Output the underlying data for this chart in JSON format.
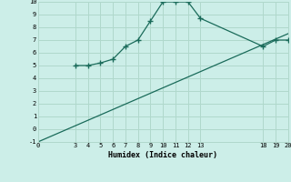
{
  "xlabel": "Humidex (Indice chaleur)",
  "ylabel": "",
  "bg_color": "#cceee8",
  "grid_color": "#b0d8cc",
  "line_color": "#1a6b5a",
  "xlim": [
    0,
    20
  ],
  "ylim": [
    -1,
    10
  ],
  "xticks": [
    0,
    3,
    4,
    5,
    6,
    7,
    8,
    9,
    10,
    11,
    12,
    13,
    18,
    19,
    20
  ],
  "yticks": [
    -1,
    0,
    1,
    2,
    3,
    4,
    5,
    6,
    7,
    8,
    9,
    10
  ],
  "line1_x": [
    0,
    20
  ],
  "line1_y": [
    -1,
    7.5
  ],
  "line2_x": [
    3,
    4,
    5,
    6,
    7,
    8,
    9,
    10,
    11,
    12,
    13,
    18,
    19,
    20
  ],
  "line2_y": [
    5.0,
    5.0,
    5.2,
    5.5,
    6.5,
    7.0,
    8.5,
    10.0,
    10.0,
    10.0,
    8.7,
    6.5,
    7.0,
    7.0
  ]
}
